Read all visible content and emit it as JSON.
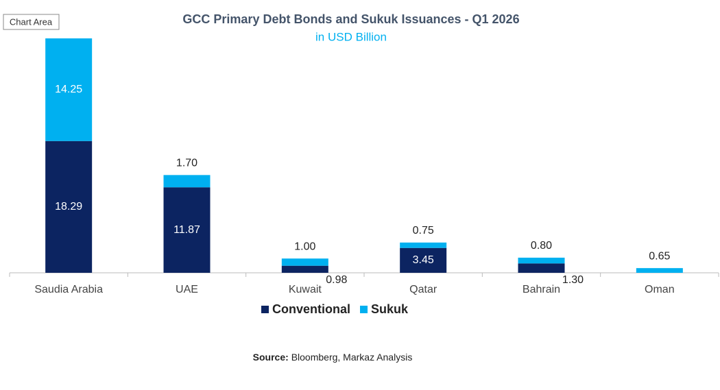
{
  "tooltip": "Chart Area",
  "chart_data": {
    "type": "stacked-bar",
    "title": "GCC Primary Debt Bonds and Sukuk Issuances - Q1 2026",
    "subtitle": "in USD Billion",
    "categories": [
      "Saudia Arabia",
      "UAE",
      "Kuwait",
      "Qatar",
      "Bahrain",
      "Oman"
    ],
    "series": [
      {
        "name": "Conventional",
        "color": "#0c2461",
        "values": [
          18.29,
          11.87,
          0.98,
          3.45,
          1.3,
          null
        ],
        "value_labels": [
          "18.29",
          "11.87",
          "0.98",
          "3.45",
          "1.30",
          null
        ]
      },
      {
        "name": "Sukuk",
        "color": "#00b0f0",
        "values": [
          14.25,
          1.7,
          1.0,
          0.75,
          0.8,
          0.65
        ],
        "value_labels": [
          "14.25",
          "1.70",
          "1.00",
          "0.75",
          "0.80",
          "0.65"
        ]
      }
    ],
    "legend": "bottom",
    "source_label": "Source:",
    "source_text": "Bloomberg, Markaz Analysis"
  }
}
